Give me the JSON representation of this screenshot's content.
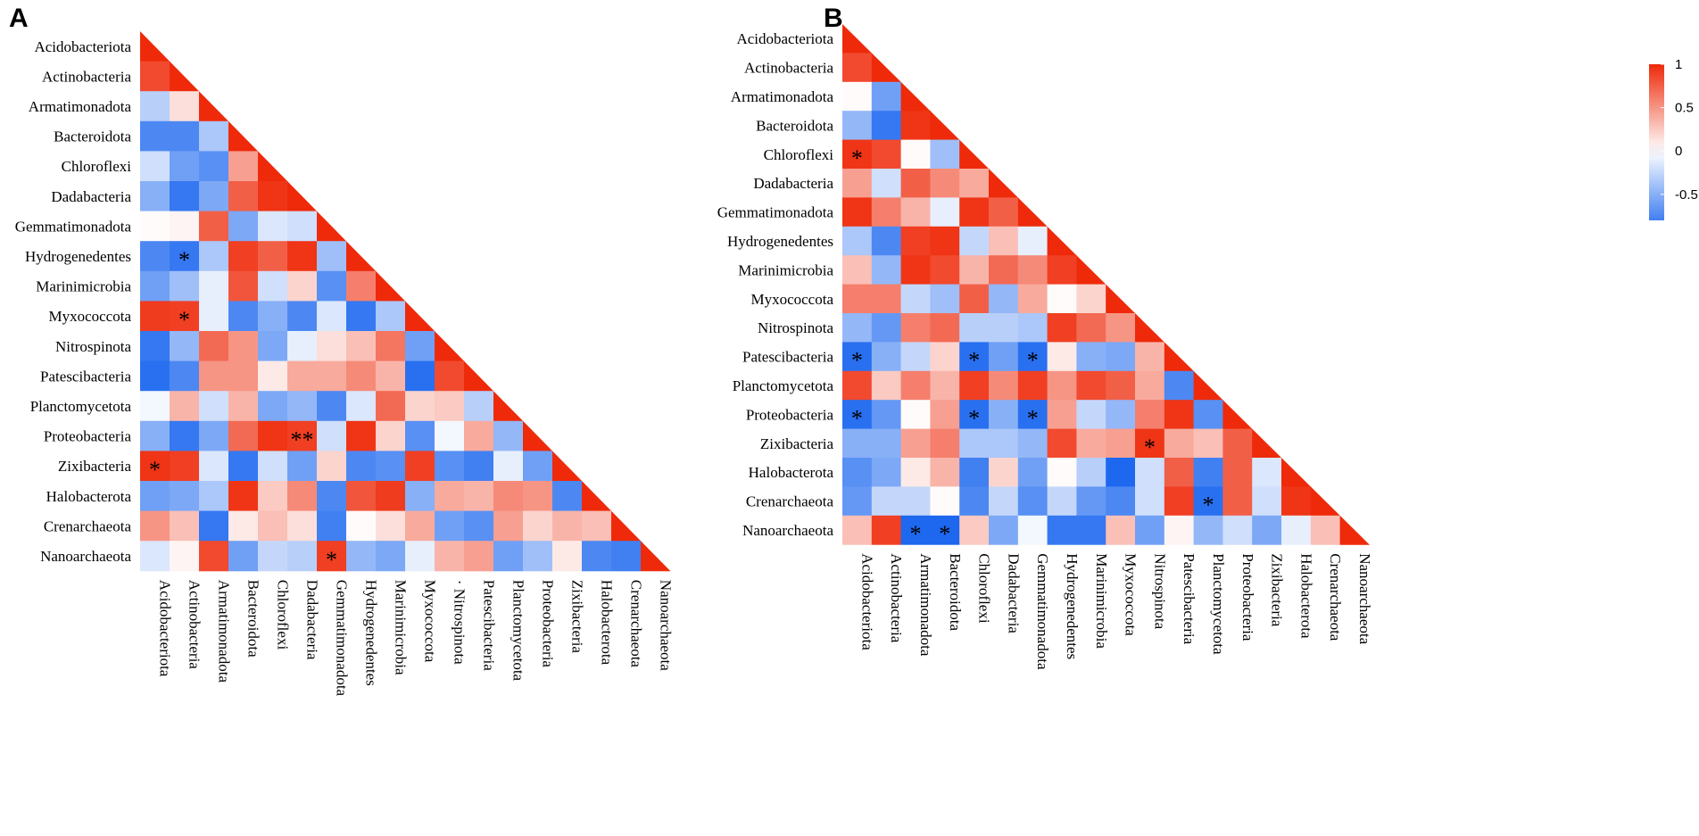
{
  "chart_data": [
    {
      "type": "heatmap",
      "panel": "A",
      "variant": "lower-triangle correlation matrix",
      "taxa": [
        "Acidobacteriota",
        "Actinobacteria",
        "Armatimonadota",
        "Bacteroidota",
        "Chloroflexi",
        "Dadabacteria",
        "Gemmatimonadota",
        "Hydrogenedentes",
        "Marinimicrobia",
        "Myxococcota",
        "Nitrospinota",
        "Patescibacteria",
        "Planctomycetota",
        "Proteobacteria",
        "Zixibacteria",
        "Halobacterota",
        "Crenarchaeota",
        "Nanoarchaeota"
      ],
      "x_tick_labels": [
        "Acidobacteriota",
        "Actinobacteria",
        "Armatimonadota",
        "Bacteroidota",
        "Chloroflexi",
        "Dadabacteria",
        "Gemmatimonadota",
        "Hydrogenedentes",
        "Marinimicrobia",
        "Myxococcota",
        "· Nitrospinota",
        "Patescibacteria",
        "Planctomycetota",
        "Proteobacteria",
        "Zixibacteria",
        "Halobacterota",
        "Crenarchaeota",
        "Nanoarchaeota"
      ],
      "values": [
        [
          1
        ],
        [
          0.85,
          1
        ],
        [
          -0.3,
          0.15,
          1
        ],
        [
          -0.75,
          -0.75,
          -0.35,
          1
        ],
        [
          -0.2,
          -0.6,
          -0.7,
          0.45,
          1
        ],
        [
          -0.5,
          -0.85,
          -0.55,
          0.75,
          0.95,
          1
        ],
        [
          0.02,
          0.05,
          0.75,
          -0.55,
          -0.15,
          -0.2,
          1
        ],
        [
          -0.75,
          -0.85,
          -0.35,
          0.9,
          0.75,
          0.95,
          -0.4,
          1
        ],
        [
          -0.6,
          -0.4,
          -0.1,
          0.8,
          -0.2,
          0.2,
          -0.7,
          0.6,
          1
        ],
        [
          0.92,
          0.9,
          -0.1,
          -0.75,
          -0.5,
          -0.75,
          -0.15,
          -0.85,
          -0.35,
          1
        ],
        [
          -0.85,
          -0.45,
          0.7,
          0.5,
          -0.55,
          -0.1,
          0.15,
          0.3,
          0.65,
          -0.6,
          1
        ],
        [
          -0.9,
          -0.75,
          0.5,
          0.5,
          0.1,
          0.4,
          0.4,
          0.55,
          0.35,
          -0.9,
          0.85,
          1
        ],
        [
          -0.05,
          0.35,
          -0.2,
          0.35,
          -0.55,
          -0.45,
          -0.75,
          -0.15,
          0.7,
          0.2,
          0.25,
          -0.3,
          1
        ],
        [
          -0.5,
          -0.85,
          -0.55,
          0.7,
          0.95,
          0.9,
          -0.2,
          0.95,
          0.2,
          -0.7,
          -0.05,
          0.4,
          -0.45,
          1
        ],
        [
          0.95,
          0.9,
          -0.15,
          -0.85,
          -0.2,
          -0.6,
          0.2,
          -0.75,
          -0.7,
          0.9,
          -0.7,
          -0.8,
          -0.1,
          -0.6,
          1
        ],
        [
          -0.6,
          -0.55,
          -0.35,
          0.95,
          0.25,
          0.55,
          -0.75,
          0.8,
          0.92,
          -0.5,
          0.4,
          0.35,
          0.55,
          0.5,
          -0.75,
          1
        ],
        [
          0.5,
          0.3,
          -0.85,
          0.1,
          0.3,
          0.15,
          -0.8,
          0.02,
          0.15,
          0.4,
          -0.6,
          -0.7,
          0.45,
          0.2,
          0.35,
          0.3,
          1
        ],
        [
          -0.15,
          0.05,
          0.85,
          -0.6,
          -0.25,
          -0.3,
          0.9,
          -0.45,
          -0.55,
          -0.1,
          0.35,
          0.45,
          -0.6,
          -0.4,
          0.1,
          -0.75,
          -0.8,
          1
        ]
      ],
      "significance": [
        {
          "row": "Hydrogenedentes",
          "col": "Actinobacteria",
          "mark": "*"
        },
        {
          "row": "Myxococcota",
          "col": "Actinobacteria",
          "mark": "*"
        },
        {
          "row": "Proteobacteria",
          "col": "Dadabacteria",
          "mark": "**"
        },
        {
          "row": "Zixibacteria",
          "col": "Acidobacteriota",
          "mark": "*"
        },
        {
          "row": "Nanoarchaeota",
          "col": "Gemmatimonadota",
          "mark": "*"
        }
      ]
    },
    {
      "type": "heatmap",
      "panel": "B",
      "variant": "lower-triangle correlation matrix",
      "taxa": [
        "Acidobacteriota",
        "Actinobacteria",
        "Armatimonadota",
        "Bacteroidota",
        "Chloroflexi",
        "Dadabacteria",
        "Gemmatimonadota",
        "Hydrogenedentes",
        "Marinimicrobia",
        "Myxococcota",
        "Nitrospinota",
        "Patescibacteria",
        "Planctomycetota",
        "Proteobacteria",
        "Zixibacteria",
        "Halobacterota",
        "Crenarchaeota",
        "Nanoarchaeota"
      ],
      "x_tick_labels": [
        "Acidobacteriota",
        "Actinobacteria",
        "Armatimonadota",
        "Bacteroidota",
        "Chloroflexi",
        "Dadabacteria",
        "Gemmatimonadota",
        "Hydrogenedentes",
        "Marinimicrobia",
        "Myxococcota",
        "Nitrospinota",
        "Patescibacteria",
        "Planctomycetota",
        "Proteobacteria",
        "Zixibacteria",
        "Halobacterota",
        "Crenarchaeota",
        "Nanoarchaeota"
      ],
      "values": [
        [
          1
        ],
        [
          0.85,
          1
        ],
        [
          0.02,
          -0.6,
          1
        ],
        [
          -0.45,
          -0.85,
          0.95,
          1
        ],
        [
          0.95,
          0.85,
          0.02,
          -0.4,
          1
        ],
        [
          0.45,
          -0.2,
          0.75,
          0.55,
          0.4,
          1
        ],
        [
          0.95,
          0.6,
          0.35,
          -0.1,
          0.95,
          0.75,
          1
        ],
        [
          -0.35,
          -0.75,
          0.9,
          0.95,
          -0.25,
          0.3,
          -0.1,
          1
        ],
        [
          0.3,
          -0.45,
          0.95,
          0.85,
          0.35,
          0.7,
          0.55,
          0.9,
          1
        ],
        [
          0.6,
          0.6,
          -0.25,
          -0.4,
          0.75,
          -0.45,
          0.4,
          0.02,
          0.2,
          1
        ],
        [
          -0.45,
          -0.65,
          0.6,
          0.7,
          -0.3,
          -0.3,
          -0.35,
          0.9,
          0.7,
          0.5,
          1
        ],
        [
          -0.9,
          -0.5,
          -0.25,
          0.2,
          -0.9,
          -0.6,
          -0.9,
          0.1,
          -0.5,
          -0.55,
          0.35,
          1
        ],
        [
          0.85,
          0.25,
          0.6,
          0.35,
          0.9,
          0.55,
          0.9,
          0.5,
          0.85,
          0.75,
          0.4,
          -0.75,
          1
        ],
        [
          -0.9,
          -0.65,
          0.02,
          0.45,
          -0.9,
          -0.5,
          -0.9,
          0.45,
          -0.25,
          -0.45,
          0.6,
          0.95,
          -0.7,
          1
        ],
        [
          -0.5,
          -0.5,
          0.45,
          0.6,
          -0.35,
          -0.35,
          -0.45,
          0.85,
          0.4,
          0.45,
          0.95,
          0.4,
          0.3,
          0.75,
          1
        ],
        [
          -0.7,
          -0.55,
          0.1,
          0.35,
          -0.8,
          0.2,
          -0.6,
          0.02,
          -0.3,
          -0.95,
          -0.2,
          0.75,
          -0.8,
          0.75,
          -0.15,
          1
        ],
        [
          -0.65,
          -0.25,
          -0.25,
          0.02,
          -0.75,
          -0.25,
          -0.7,
          -0.25,
          -0.65,
          -0.75,
          -0.2,
          0.9,
          -0.9,
          0.75,
          -0.2,
          0.95,
          1
        ],
        [
          0.3,
          0.9,
          -0.95,
          -0.95,
          0.25,
          -0.55,
          -0.05,
          -0.85,
          -0.85,
          0.3,
          -0.6,
          0.05,
          -0.45,
          -0.2,
          -0.55,
          -0.1,
          0.3,
          1
        ]
      ],
      "significance": [
        {
          "row": "Chloroflexi",
          "col": "Acidobacteriota",
          "mark": "*"
        },
        {
          "row": "Patescibacteria",
          "col": "Acidobacteriota",
          "mark": "*"
        },
        {
          "row": "Patescibacteria",
          "col": "Chloroflexi",
          "mark": "*"
        },
        {
          "row": "Patescibacteria",
          "col": "Gemmatimonadota",
          "mark": "*"
        },
        {
          "row": "Proteobacteria",
          "col": "Acidobacteriota",
          "mark": "*"
        },
        {
          "row": "Proteobacteria",
          "col": "Chloroflexi",
          "mark": "*"
        },
        {
          "row": "Proteobacteria",
          "col": "Gemmatimonadota",
          "mark": "*"
        },
        {
          "row": "Zixibacteria",
          "col": "Nitrospinota",
          "mark": "*"
        },
        {
          "row": "Crenarchaeota",
          "col": "Planctomycetota",
          "mark": "*"
        },
        {
          "row": "Nanoarchaeota",
          "col": "Armatimonadota",
          "mark": "*"
        },
        {
          "row": "Nanoarchaeota",
          "col": "Bacteroidota",
          "mark": "*"
        }
      ],
      "colorbar": {
        "range": [
          -0.8,
          1
        ],
        "ticks": [
          1,
          0.5,
          0,
          -0.5
        ],
        "tick_labels": [
          "1",
          "0.5",
          "0",
          "-0.5"
        ],
        "colors": {
          "negative": "#1160ee",
          "neutral": "#ffffff",
          "positive": "#ee2a0a"
        }
      }
    }
  ]
}
